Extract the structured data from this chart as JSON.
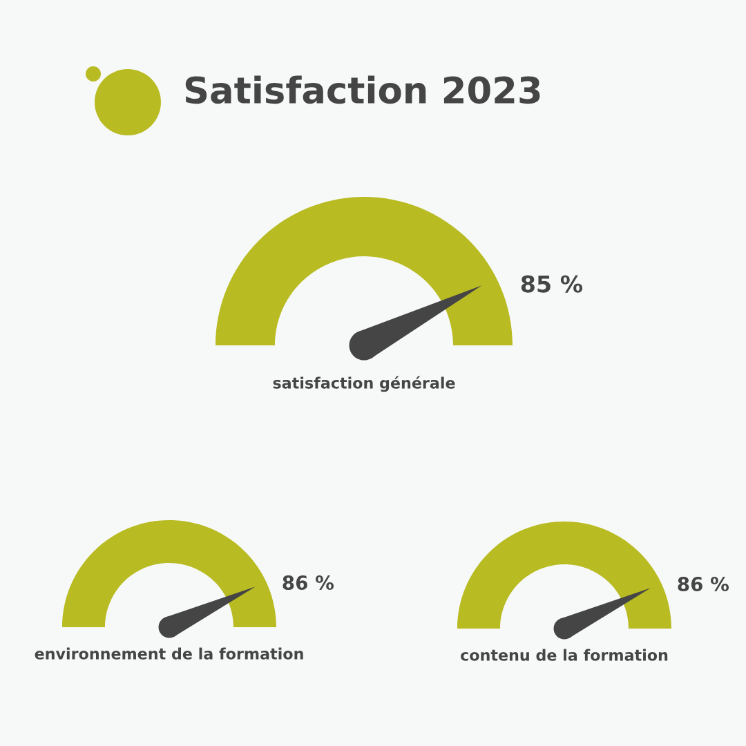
{
  "chart_data": [
    {
      "type": "other",
      "title": "Satisfaction 2023",
      "xlabel": "satisfaction générale",
      "values": [
        85
      ],
      "value_labels": [
        "85 %"
      ],
      "color": "#b8bb22"
    },
    {
      "type": "other",
      "xlabel": "environnement de la formation",
      "values": [
        86
      ],
      "value_labels": [
        "86 %"
      ],
      "color": "#b8bb22"
    },
    {
      "type": "other",
      "xlabel": "contenu de la formation",
      "values": [
        86
      ],
      "value_labels": [
        "86 %"
      ],
      "color": "#b8bb22"
    }
  ]
}
